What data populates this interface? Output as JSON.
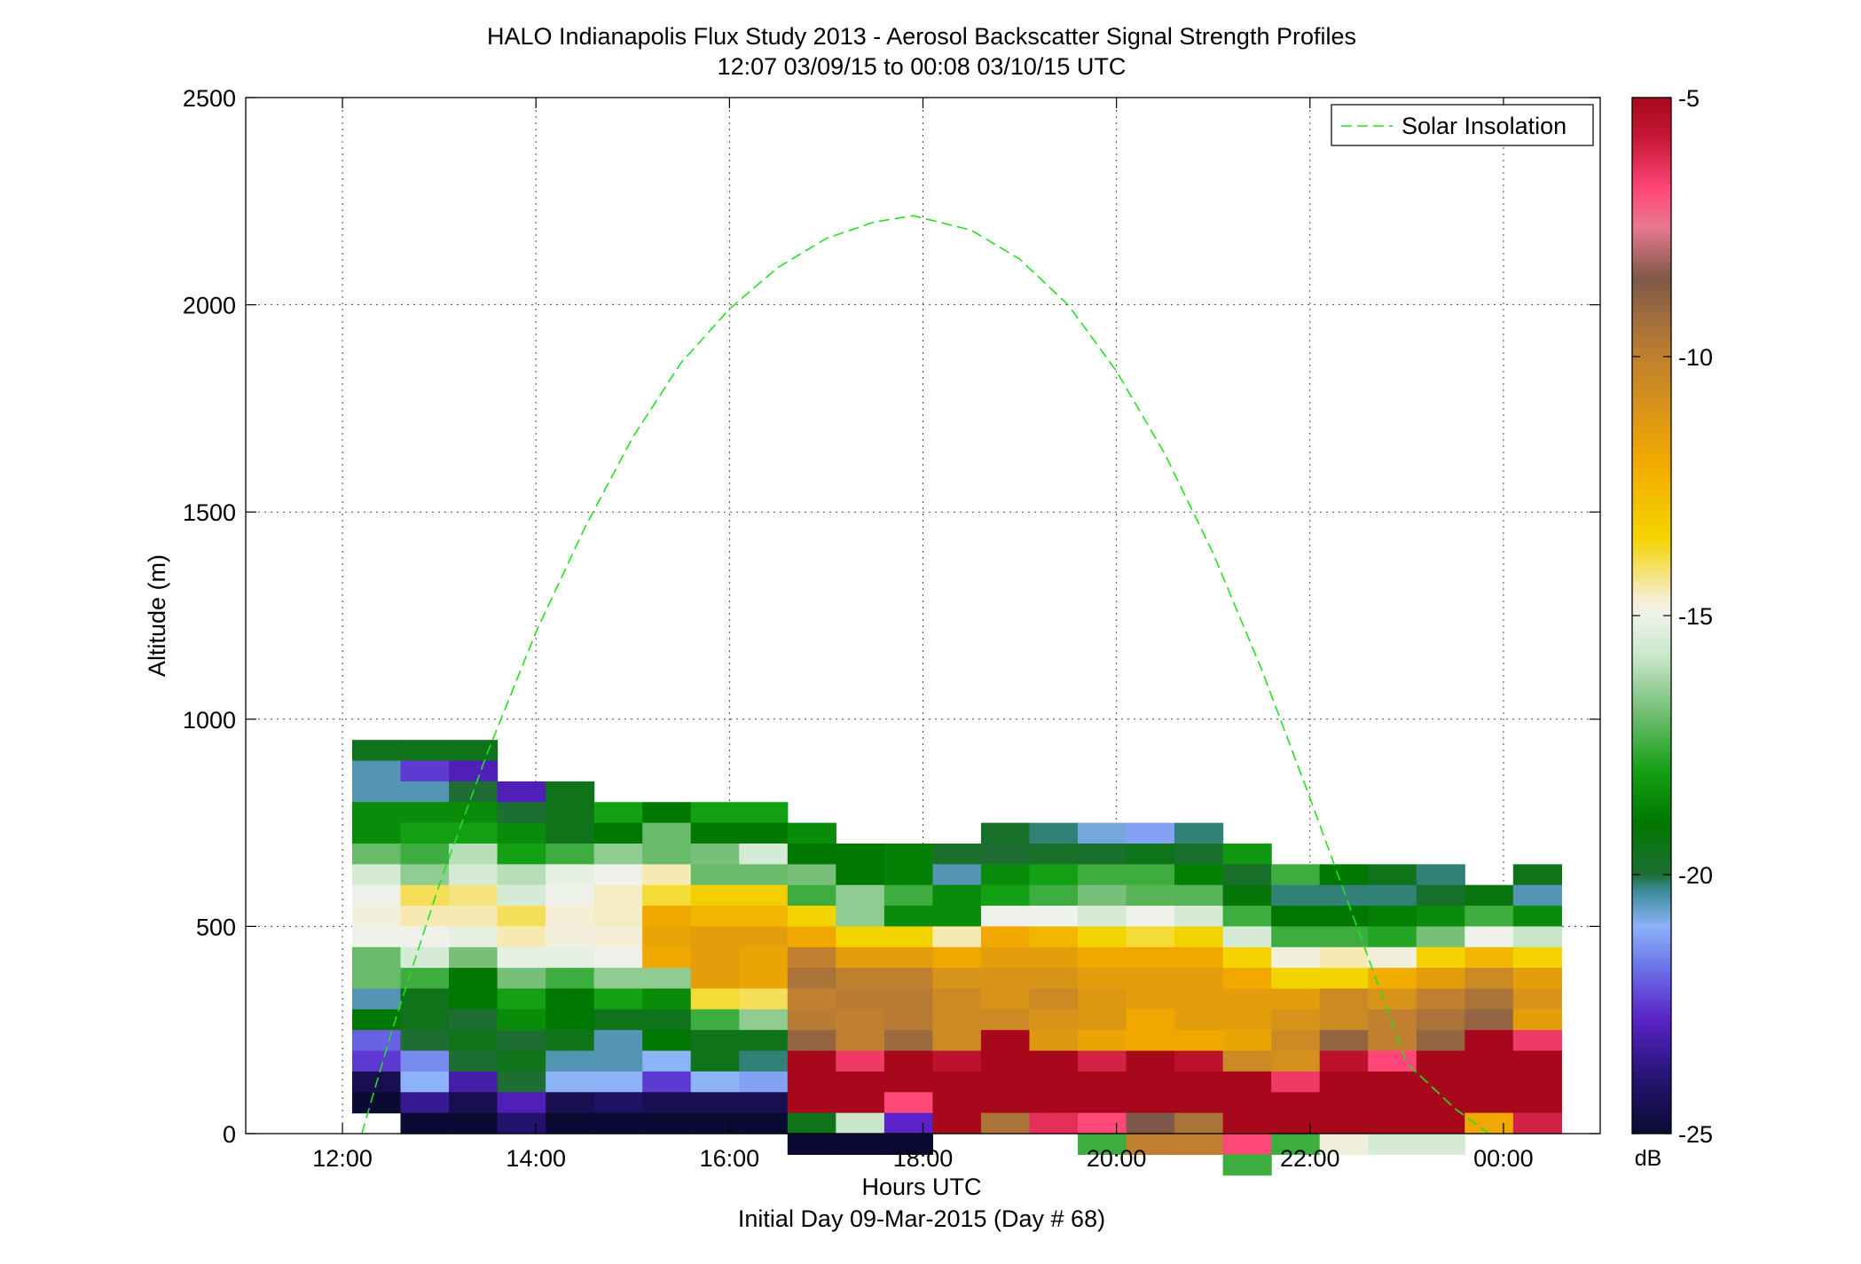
{
  "chart_data": {
    "type": "heatmap",
    "title": "HALO Indianapolis Flux Study 2013 - Aerosol Backscatter Signal Strength Profiles",
    "subtitle": "12:07 03/09/15 to 00:08 03/10/15  UTC",
    "xlabel": "Hours UTC",
    "xlabel2": "Initial Day 09-Mar-2015 (Day # 68)",
    "ylabel": "Altitude (m)",
    "xlim": [
      11.0,
      25.0
    ],
    "ylim": [
      0,
      2500
    ],
    "xticks": [
      12,
      14,
      16,
      18,
      20,
      22,
      24
    ],
    "xtick_labels": [
      "12:00",
      "14:00",
      "16:00",
      "18:00",
      "20:00",
      "22:00",
      "00:00"
    ],
    "yticks": [
      0,
      500,
      1000,
      1500,
      2000,
      2500
    ],
    "ytick_labels": [
      "0",
      "500",
      "1000",
      "1500",
      "2000",
      "2500"
    ],
    "grid": true,
    "colorbar": {
      "label": "dB",
      "range": [
        -25,
        -5
      ],
      "ticks": [
        -5,
        -10,
        -15,
        -20,
        -25
      ],
      "tick_labels": [
        "-5",
        "-10",
        "-15",
        "-20",
        "-25"
      ],
      "stops": [
        {
          "v": -25,
          "c": "#0b0a32"
        },
        {
          "v": -23.8,
          "c": "#28157a"
        },
        {
          "v": -22.8,
          "c": "#5a22c8"
        },
        {
          "v": -21.8,
          "c": "#6a72e8"
        },
        {
          "v": -21.0,
          "c": "#8cb2f8"
        },
        {
          "v": -20.3,
          "c": "#3c8a98"
        },
        {
          "v": -20.0,
          "c": "#1e6e34"
        },
        {
          "v": -19.0,
          "c": "#007800"
        },
        {
          "v": -18.0,
          "c": "#14a014"
        },
        {
          "v": -16.8,
          "c": "#78c07a"
        },
        {
          "v": -15.8,
          "c": "#c8e6c8"
        },
        {
          "v": -15.0,
          "c": "#eef2ea"
        },
        {
          "v": -14.7,
          "c": "#f6eed6"
        },
        {
          "v": -13.5,
          "c": "#f4d400"
        },
        {
          "v": -12.0,
          "c": "#f0a800"
        },
        {
          "v": -10.0,
          "c": "#c08030"
        },
        {
          "v": -8.5,
          "c": "#7e5848"
        },
        {
          "v": -7.5,
          "c": "#e87890"
        },
        {
          "v": -6.8,
          "c": "#ff4878"
        },
        {
          "v": -5.8,
          "c": "#c81838"
        },
        {
          "v": -5.0,
          "c": "#a8081c"
        }
      ]
    },
    "legend": {
      "entries": [
        "Solar Insolation"
      ],
      "placement": "top-right"
    },
    "series": [
      {
        "name": "Solar Insolation",
        "style": "dashed",
        "color": "#22e022",
        "x": [
          12.2,
          12.5,
          13.0,
          13.5,
          14.0,
          14.5,
          15.0,
          15.5,
          16.0,
          16.5,
          17.0,
          17.5,
          17.9,
          18.5,
          19.0,
          19.5,
          20.0,
          20.5,
          21.0,
          21.5,
          22.0,
          22.5,
          23.0,
          23.5,
          23.85
        ],
        "y": [
          0,
          240,
          600,
          920,
          1210,
          1460,
          1680,
          1860,
          1990,
          2090,
          2160,
          2200,
          2215,
          2180,
          2110,
          2000,
          1840,
          1640,
          1400,
          1120,
          810,
          490,
          170,
          60,
          0
        ]
      }
    ],
    "heatmap": {
      "x_start": 12.1,
      "x_step": 0.5,
      "y_step": 50,
      "columns": [
        {
          "top": 1000,
          "cells": [
            null,
            -19.5,
            -20.5,
            -20.5,
            -18.5,
            -18.5,
            -17,
            -15.5,
            -15,
            -14.8,
            -15,
            -17,
            -17,
            -20.5,
            -19,
            -22,
            -22.5,
            -24.5,
            -25
          ]
        },
        {
          "top": 950,
          "cells": [
            -19.5,
            -22.5,
            -20.5,
            -18.5,
            -18,
            -17.5,
            -16.5,
            -14,
            -14.5,
            -15,
            -15.5,
            -17.5,
            -19.5,
            -19.5,
            -20,
            -21.5,
            -21,
            -23.5,
            -25
          ]
        },
        {
          "top": 950,
          "cells": [
            -19.5,
            -23,
            -20,
            -18.5,
            -18,
            -16,
            -15.5,
            -14.2,
            -14.5,
            -15.2,
            -16.8,
            -19,
            -19,
            -20,
            -19.5,
            -20,
            -23.2,
            -24.5,
            -25
          ]
        },
        {
          "top": 900,
          "cells": [
            null,
            -23,
            -20,
            -18.5,
            -18,
            -16,
            -15.5,
            -14,
            -14.5,
            -15.2,
            -16.8,
            -18,
            -18.5,
            -20,
            -19.5,
            -20,
            -23,
            -24
          ]
        },
        {
          "top": 900,
          "cells": [
            null,
            -19.5,
            -19.5,
            -19.5,
            -17.5,
            -15.2,
            -15,
            -14.7,
            -14.8,
            -15.2,
            -17.5,
            -19,
            -19,
            -19.5,
            -20.5,
            -21,
            -24.5,
            -25
          ]
        },
        {
          "top": 850,
          "cells": [
            null,
            -18,
            -19,
            -16.5,
            -15,
            -14.6,
            -14.6,
            -14.7,
            -15,
            -16.5,
            -18,
            -19.5,
            -20.5,
            -20.5,
            -21,
            -24.2,
            -25
          ]
        },
        {
          "top": 850,
          "cells": [
            null,
            -19,
            -17,
            -17,
            -14.5,
            -13.8,
            -12,
            -11.8,
            -12,
            -16.5,
            -18.5,
            -19.5,
            -19,
            -21,
            -22.5,
            -24.5,
            -25
          ]
        },
        {
          "top": 800,
          "cells": [
            -18,
            -19,
            -16.8,
            -17,
            -13.3,
            -12.5,
            -11.5,
            -11.5,
            -11.5,
            -13.8,
            -17.5,
            -19.5,
            -19.5,
            -21,
            -24.5,
            -25
          ]
        },
        {
          "top": 800,
          "cells": [
            -18,
            -19,
            -15.5,
            -17,
            -13.3,
            -12.5,
            -11.5,
            -11.8,
            -11.8,
            -14,
            -16.5,
            -19.5,
            -20.2,
            -21.2,
            -24.5,
            -25
          ]
        },
        {
          "top": 750,
          "cells": [
            -18.5,
            -19,
            -16.8,
            -17.5,
            -13.5,
            -12,
            -10,
            -9.5,
            -10,
            -9.8,
            -9,
            -5,
            -5,
            -5,
            -19.5,
            -25
          ]
        },
        {
          "top": 700,
          "cells": [
            -19,
            -19,
            -16.5,
            -16.5,
            -13.5,
            -11.5,
            -10,
            -9.8,
            -10,
            -10,
            -6.5,
            -5,
            -5,
            -15.8,
            -25
          ]
        },
        {
          "top": 700,
          "cells": [
            -18.8,
            -18.8,
            -17.5,
            -18.5,
            -13.5,
            -11.5,
            -10,
            -9.8,
            -9.8,
            -9.2,
            -5,
            -5,
            -6.8,
            -22.8,
            -25
          ]
        },
        {
          "top": 700,
          "cells": [
            -19.8,
            -20.5,
            -18.5,
            -18.5,
            -14.5,
            -12,
            -11,
            -10.5,
            -10.5,
            -10.5,
            -5.5,
            -5,
            -5,
            -5
          ]
        },
        {
          "top": 750,
          "cells": [
            -19.8,
            -20,
            -18.5,
            -18,
            -15,
            -12,
            -11.5,
            -11,
            -11,
            -10.5,
            -5,
            -5,
            -5,
            -5,
            -9.5
          ]
        },
        {
          "top": 750,
          "cells": [
            -20.2,
            -19.8,
            -18,
            -17.5,
            -15,
            -12.5,
            -11.5,
            -11,
            -10.5,
            -11,
            -11.2,
            -5,
            -5,
            -5,
            -6.3
          ]
        },
        {
          "top": 750,
          "cells": [
            -20.8,
            -19.8,
            -17.5,
            -16.8,
            -15.5,
            -13.5,
            -12,
            -11.5,
            -11.2,
            -11.2,
            -11.8,
            -6,
            -5,
            -5,
            -6.8,
            -17.5
          ]
        },
        {
          "top": 750,
          "cells": [
            -21.2,
            -19.5,
            -17.5,
            -17.2,
            -15,
            -13.8,
            -12,
            -11.5,
            -11.5,
            -12,
            -12,
            -5,
            -5,
            -5,
            -8.5,
            -10
          ]
        },
        {
          "top": 750,
          "cells": [
            -20.2,
            -19.8,
            -18.8,
            -17.2,
            -15.5,
            -13.5,
            -12,
            -11.5,
            -11.5,
            -11.5,
            -12,
            -5.5,
            -5,
            -5,
            -9.5,
            -10
          ]
        },
        {
          "top": 700,
          "cells": [
            -18.2,
            -19.8,
            -19.2,
            -17.5,
            -15.5,
            -13.5,
            -12,
            -11.5,
            -11.5,
            -11.8,
            -10.5,
            -5,
            -5,
            -5,
            -6.8,
            -17.5
          ]
        },
        {
          "top": 650,
          "cells": [
            -17.5,
            -20.2,
            -19,
            -17.5,
            -14.8,
            -13.5,
            -11.5,
            -11,
            -10.5,
            -10.8,
            -6.5,
            -5,
            -5,
            -17.5
          ]
        },
        {
          "top": 650,
          "cells": [
            -19,
            -20.2,
            -19,
            -17.5,
            -14.5,
            -13.5,
            -10.5,
            -10.5,
            -9,
            -5.5,
            -5,
            -5,
            -5,
            -14.8
          ]
        },
        {
          "top": 650,
          "cells": [
            -19.5,
            -20.2,
            -18.8,
            -17.8,
            -14.8,
            -12.2,
            -11,
            -10,
            -10,
            -6.8,
            -5,
            -5,
            -5,
            -15.5
          ]
        },
        {
          "top": 650,
          "cells": [
            -20.2,
            -19.8,
            -18.5,
            -16.8,
            -13.5,
            -11.5,
            -10,
            -9.5,
            -9,
            -5,
            -5,
            -5,
            -5,
            -15.5
          ]
        },
        {
          "top": 650,
          "cells": [
            null,
            -19.3,
            -17.5,
            -15,
            -12.5,
            -10.5,
            -9.5,
            -9,
            -5,
            -5,
            -5,
            -5,
            -12
          ]
        },
        {
          "top": 650,
          "cells": [
            -19.5,
            -20.5,
            -18.5,
            -15.8,
            -13.5,
            -11.5,
            -11,
            -11.5,
            -6.5,
            -5,
            -5,
            -5,
            -6
          ]
        }
      ]
    }
  }
}
